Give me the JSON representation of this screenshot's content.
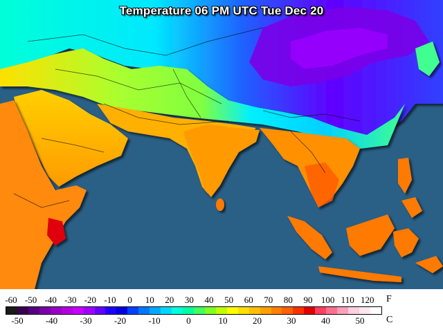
{
  "title": "Temperature 06 PM UTC Tue Dec 20",
  "legend": {
    "fahrenheit_unit": "F",
    "celsius_unit": "C",
    "fahrenheit_ticks": [
      "-60",
      "-50",
      "-40",
      "-30",
      "-20",
      "-10",
      "0",
      "10",
      "20",
      "30",
      "40",
      "50",
      "60",
      "70",
      "80",
      "90",
      "100",
      "110",
      "120"
    ],
    "celsius_ticks": [
      "-50",
      "-40",
      "-30",
      "-20",
      "-10",
      "0",
      "10",
      "20",
      "30",
      "40",
      "50"
    ],
    "colors": [
      "#1a1a1a",
      "#3a0050",
      "#550080",
      "#7a00a8",
      "#9a00c8",
      "#b400e0",
      "#c800ff",
      "#a000ff",
      "#6400ff",
      "#1e00ff",
      "#0000e0",
      "#0040ff",
      "#0078ff",
      "#00a8ff",
      "#00d8ff",
      "#00ffe0",
      "#00ffa0",
      "#40ff60",
      "#80ff20",
      "#c0ff00",
      "#ffff00",
      "#ffe000",
      "#ffc000",
      "#ffa000",
      "#ff8000",
      "#ff6000",
      "#ff3000",
      "#e00000",
      "#ff4060",
      "#ff7090",
      "#ffa0b8",
      "#ffd0e0",
      "#ffe8f0",
      "#ffffff"
    ]
  },
  "colors": {
    "ocean": "#2a5f86",
    "land_hot": "#ff7a00",
    "land_warm": "#ffaa00",
    "land_mild": "#ffe000",
    "land_cool": "#a0ff40",
    "land_cold": "#00e0ff",
    "land_freezing": "#1e40ff",
    "land_frigid": "#8a00e0"
  }
}
